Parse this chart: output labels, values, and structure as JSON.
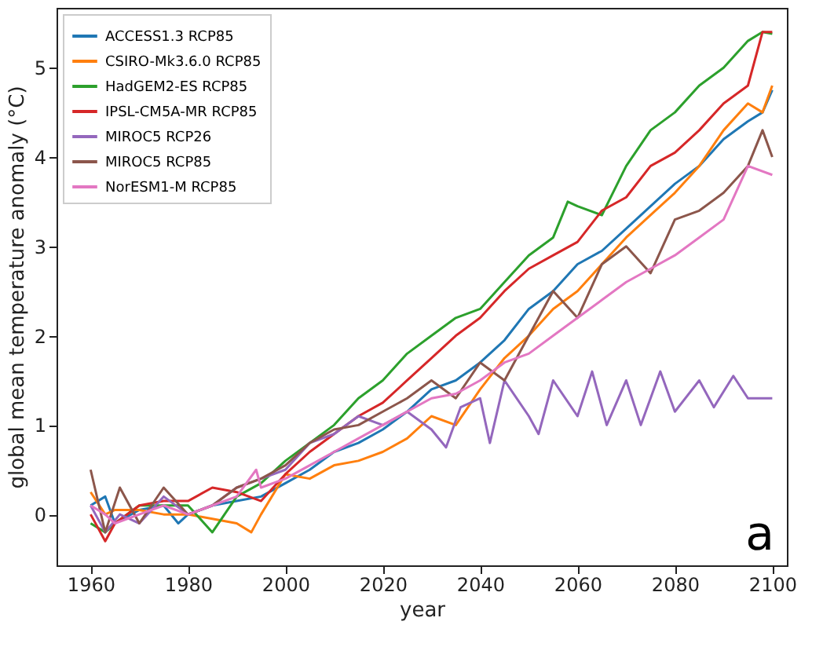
{
  "chart_data": {
    "type": "line",
    "xlabel": "year",
    "ylabel": "global mean temperature anomaly (°C)",
    "annotations": [
      "a"
    ],
    "xlim": [
      1953,
      2103
    ],
    "xticks": [
      1960,
      1980,
      2000,
      2020,
      2040,
      2060,
      2080,
      2100
    ],
    "ylim": [
      -0.57,
      5.67
    ],
    "yticks": [
      0,
      1,
      2,
      3,
      4,
      5
    ],
    "grid": false,
    "legend": "top left",
    "series": [
      {
        "name": "ACCESS1.3 RCP85",
        "color": "#1f77b4",
        "x": [
          1960,
          1963,
          1965,
          1970,
          1975,
          1978,
          1980,
          1985,
          1990,
          1995,
          2000,
          2005,
          2010,
          2015,
          2020,
          2025,
          2030,
          2035,
          2040,
          2045,
          2050,
          2055,
          2060,
          2065,
          2070,
          2075,
          2080,
          2085,
          2090,
          2095,
          2098,
          2100
        ],
        "values": [
          0.1,
          0.2,
          -0.1,
          0.05,
          0.1,
          -0.1,
          0.0,
          0.1,
          0.15,
          0.2,
          0.35,
          0.5,
          0.7,
          0.8,
          0.95,
          1.15,
          1.4,
          1.5,
          1.7,
          1.95,
          2.3,
          2.5,
          2.8,
          2.95,
          3.2,
          3.45,
          3.7,
          3.9,
          4.2,
          4.4,
          4.5,
          4.75
        ]
      },
      {
        "name": "CSIRO-Mk3.6.0 RCP85",
        "color": "#ff7f0e",
        "x": [
          1960,
          1963,
          1965,
          1970,
          1975,
          1980,
          1985,
          1990,
          1993,
          1995,
          2000,
          2005,
          2010,
          2015,
          2020,
          2025,
          2030,
          2035,
          2040,
          2045,
          2050,
          2055,
          2060,
          2065,
          2070,
          2075,
          2080,
          2085,
          2090,
          2095,
          2098,
          2100
        ],
        "values": [
          0.25,
          0.0,
          0.05,
          0.05,
          0.0,
          0.0,
          -0.05,
          -0.1,
          -0.2,
          0.0,
          0.45,
          0.4,
          0.55,
          0.6,
          0.7,
          0.85,
          1.1,
          1.0,
          1.4,
          1.75,
          2.0,
          2.3,
          2.5,
          2.8,
          3.1,
          3.35,
          3.6,
          3.9,
          4.3,
          4.6,
          4.5,
          4.8
        ]
      },
      {
        "name": "HadGEM2-ES RCP85",
        "color": "#2ca02c",
        "x": [
          1960,
          1963,
          1965,
          1970,
          1975,
          1980,
          1985,
          1990,
          1995,
          2000,
          2005,
          2010,
          2015,
          2020,
          2025,
          2030,
          2035,
          2040,
          2045,
          2050,
          2055,
          2058,
          2060,
          2065,
          2070,
          2075,
          2080,
          2085,
          2090,
          2095,
          2098,
          2100
        ],
        "values": [
          -0.1,
          -0.2,
          -0.1,
          0.1,
          0.1,
          0.1,
          -0.2,
          0.2,
          0.35,
          0.6,
          0.8,
          1.0,
          1.3,
          1.5,
          1.8,
          2.0,
          2.2,
          2.3,
          2.6,
          2.9,
          3.1,
          3.5,
          3.45,
          3.35,
          3.9,
          4.3,
          4.5,
          4.8,
          5.0,
          5.3,
          5.4,
          5.38
        ]
      },
      {
        "name": "IPSL-CM5A-MR RCP85",
        "color": "#d62728",
        "x": [
          1960,
          1963,
          1965,
          1970,
          1975,
          1980,
          1985,
          1990,
          1995,
          2000,
          2005,
          2010,
          2015,
          2020,
          2025,
          2030,
          2035,
          2040,
          2045,
          2050,
          2055,
          2060,
          2065,
          2070,
          2075,
          2080,
          2085,
          2090,
          2095,
          2098,
          2100
        ],
        "values": [
          0.0,
          -0.3,
          -0.1,
          0.1,
          0.15,
          0.15,
          0.3,
          0.25,
          0.15,
          0.45,
          0.7,
          0.9,
          1.1,
          1.25,
          1.5,
          1.75,
          2.0,
          2.2,
          2.5,
          2.75,
          2.9,
          3.05,
          3.4,
          3.55,
          3.9,
          4.05,
          4.3,
          4.6,
          4.8,
          5.4,
          5.4
        ]
      },
      {
        "name": "MIROC5 RCP26",
        "color": "#9467bd",
        "x": [
          1960,
          1963,
          1966,
          1970,
          1975,
          1980,
          1985,
          1990,
          1995,
          2000,
          2005,
          2010,
          2015,
          2020,
          2025,
          2030,
          2033,
          2036,
          2040,
          2042,
          2045,
          2050,
          2052,
          2055,
          2060,
          2063,
          2066,
          2070,
          2073,
          2077,
          2080,
          2085,
          2088,
          2092,
          2095,
          2100
        ],
        "values": [
          0.1,
          -0.2,
          0.0,
          -0.1,
          0.2,
          0.0,
          0.1,
          0.3,
          0.4,
          0.5,
          0.8,
          0.9,
          1.1,
          1.0,
          1.15,
          0.95,
          0.75,
          1.2,
          1.3,
          0.8,
          1.5,
          1.1,
          0.9,
          1.5,
          1.1,
          1.6,
          1.0,
          1.5,
          1.0,
          1.6,
          1.15,
          1.5,
          1.2,
          1.55,
          1.3,
          1.3
        ]
      },
      {
        "name": "MIROC5 RCP85",
        "color": "#8c564b",
        "x": [
          1960,
          1963,
          1966,
          1970,
          1975,
          1980,
          1985,
          1990,
          1995,
          2000,
          2005,
          2010,
          2015,
          2020,
          2025,
          2030,
          2035,
          2040,
          2045,
          2050,
          2055,
          2060,
          2065,
          2070,
          2075,
          2080,
          2085,
          2090,
          2095,
          2098,
          2100
        ],
        "values": [
          0.5,
          -0.2,
          0.3,
          -0.1,
          0.3,
          0.0,
          0.1,
          0.3,
          0.4,
          0.55,
          0.8,
          0.95,
          1.0,
          1.15,
          1.3,
          1.5,
          1.3,
          1.7,
          1.5,
          2.0,
          2.5,
          2.2,
          2.8,
          3.0,
          2.7,
          3.3,
          3.4,
          3.6,
          3.9,
          4.3,
          4.0
        ]
      },
      {
        "name": "NorESM1-M RCP85",
        "color": "#e377c2",
        "x": [
          1960,
          1963,
          1965,
          1970,
          1975,
          1980,
          1985,
          1990,
          1994,
          1995,
          2000,
          2005,
          2010,
          2015,
          2020,
          2025,
          2030,
          2035,
          2040,
          2045,
          2050,
          2055,
          2060,
          2065,
          2070,
          2075,
          2080,
          2085,
          2090,
          2095,
          2100
        ],
        "values": [
          0.1,
          0.0,
          -0.1,
          0.0,
          0.1,
          0.0,
          0.1,
          0.2,
          0.5,
          0.3,
          0.4,
          0.55,
          0.7,
          0.85,
          1.0,
          1.15,
          1.3,
          1.35,
          1.5,
          1.7,
          1.8,
          2.0,
          2.2,
          2.4,
          2.6,
          2.75,
          2.9,
          3.1,
          3.3,
          3.9,
          3.8
        ]
      }
    ]
  }
}
